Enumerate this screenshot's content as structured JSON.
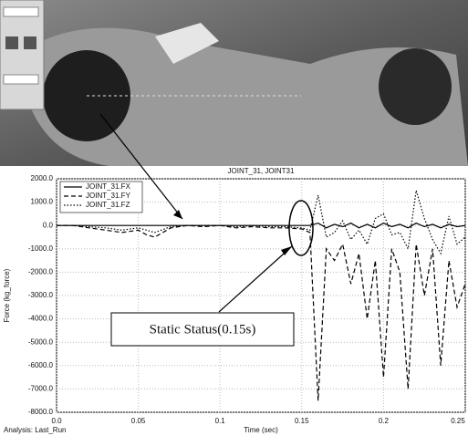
{
  "chart_data": {
    "type": "line",
    "title": "JOINT_31, JOINT31",
    "x_label": "Time (sec)",
    "y_label": "Force (kg_force)",
    "footer": "Analysis: Last_Run",
    "annotation": "Static Status(0.15s)",
    "x": [
      0,
      0.01,
      0.02,
      0.03,
      0.04,
      0.05,
      0.055,
      0.06,
      0.07,
      0.08,
      0.09,
      0.1,
      0.11,
      0.12,
      0.13,
      0.14,
      0.15,
      0.155,
      0.16,
      0.165,
      0.17,
      0.175,
      0.18,
      0.185,
      0.19,
      0.195,
      0.2,
      0.205,
      0.21,
      0.215,
      0.22,
      0.225,
      0.23,
      0.235,
      0.24,
      0.245,
      0.25
    ],
    "series": [
      {
        "name": "JOINT_31.FX",
        "color": "#000000",
        "dash": "solid",
        "values": [
          0,
          0,
          0,
          0,
          0,
          0,
          0,
          0,
          0,
          0,
          0,
          0,
          0,
          0,
          0,
          0,
          0,
          0,
          100,
          -100,
          50,
          -50,
          100,
          -100,
          50,
          -100,
          100,
          -50,
          50,
          -100,
          100,
          -50,
          50,
          -100,
          50,
          -50,
          0
        ]
      },
      {
        "name": "JOINT_31.FY",
        "color": "#000000",
        "dash": "dashed",
        "values": [
          0,
          0,
          -100,
          -200,
          -300,
          -200,
          -400,
          -500,
          -100,
          0,
          -50,
          0,
          -100,
          -50,
          -100,
          -100,
          -150,
          -300,
          -7500,
          -1000,
          -1500,
          -800,
          -2500,
          -1200,
          -4000,
          -1500,
          -6500,
          -1000,
          -2000,
          -7000,
          -800,
          -3000,
          -1000,
          -6000,
          -1500,
          -3500,
          -2500
        ]
      },
      {
        "name": "JOINT_31.FZ",
        "color": "#000000",
        "dash": "dotted",
        "values": [
          0,
          0,
          -50,
          -100,
          -200,
          -100,
          -200,
          -300,
          -50,
          0,
          0,
          0,
          -50,
          0,
          -50,
          -50,
          -100,
          -200,
          1300,
          -500,
          -300,
          200,
          -600,
          -200,
          -800,
          300,
          500,
          -400,
          -300,
          -1000,
          1500,
          300,
          -600,
          -1200,
          400,
          -800,
          -500
        ]
      }
    ],
    "xlim": [
      0,
      0.25
    ],
    "xticks": [
      {
        "value": 0,
        "label": "0.0"
      },
      0.05,
      0.1,
      0.15,
      0.2,
      0.25
    ],
    "ylim": [
      -8000,
      2000
    ],
    "yticks": [
      {
        "value": 2000,
        "label": "2000.0"
      },
      {
        "value": 1000,
        "label": "1000.0"
      },
      {
        "value": 0,
        "label": "0.0"
      },
      {
        "value": -1000,
        "label": "-1000.0"
      },
      {
        "value": -2000,
        "label": "-2000.0"
      },
      {
        "value": -3000,
        "label": "-3000.0"
      },
      {
        "value": -4000,
        "label": "-4000.0"
      },
      {
        "value": -5000,
        "label": "-5000.0"
      },
      {
        "value": -6000,
        "label": "-6000.0"
      },
      {
        "value": -7000,
        "label": "-7000.0"
      },
      {
        "value": -8000,
        "label": "-8000.0"
      }
    ],
    "grid": true
  }
}
